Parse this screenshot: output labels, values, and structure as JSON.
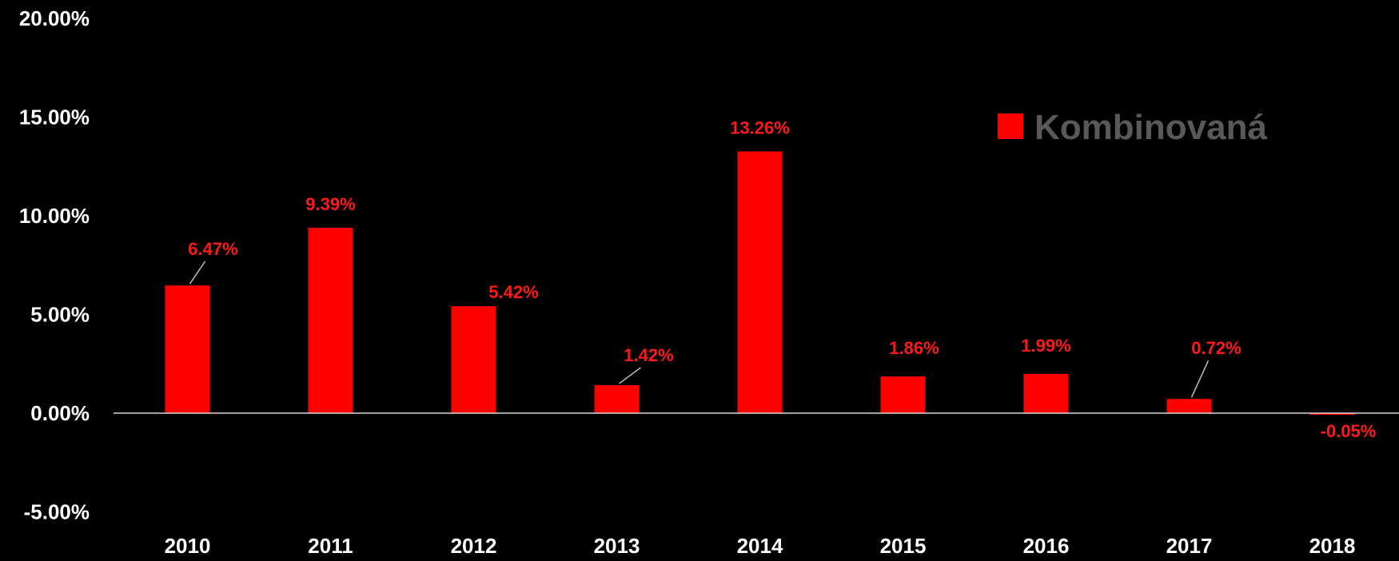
{
  "chart_data": {
    "type": "bar",
    "title": "",
    "xlabel": "",
    "ylabel": "",
    "categories": [
      "2010",
      "2011",
      "2012",
      "2013",
      "2014",
      "2015",
      "2016",
      "2017",
      "2018"
    ],
    "series": [
      {
        "name": "Kombinovaná",
        "values": [
          6.47,
          9.39,
          5.42,
          1.42,
          13.26,
          1.86,
          1.99,
          0.72,
          -0.05
        ],
        "labels": [
          "6.47%",
          "9.39%",
          "5.42%",
          "1.42%",
          "13.26%",
          "1.86%",
          "1.99%",
          "0.72%",
          "-0.05%"
        ]
      }
    ],
    "ylim": [
      -5,
      20
    ],
    "yticks": [
      20,
      15,
      10,
      5,
      0,
      -5
    ],
    "ytick_labels": [
      "20.00%",
      "15.00%",
      "10.00%",
      "5.00%",
      "0.00%",
      "-5.00%"
    ],
    "grid": false,
    "legend_position": "top-right",
    "colors": {
      "background": "#000000",
      "bar": "#ff0000",
      "data_label": "#ff1a1a",
      "legend_text": "#595959",
      "axis_text": "#ffffff",
      "zero_line": "#d9d9d9"
    }
  }
}
